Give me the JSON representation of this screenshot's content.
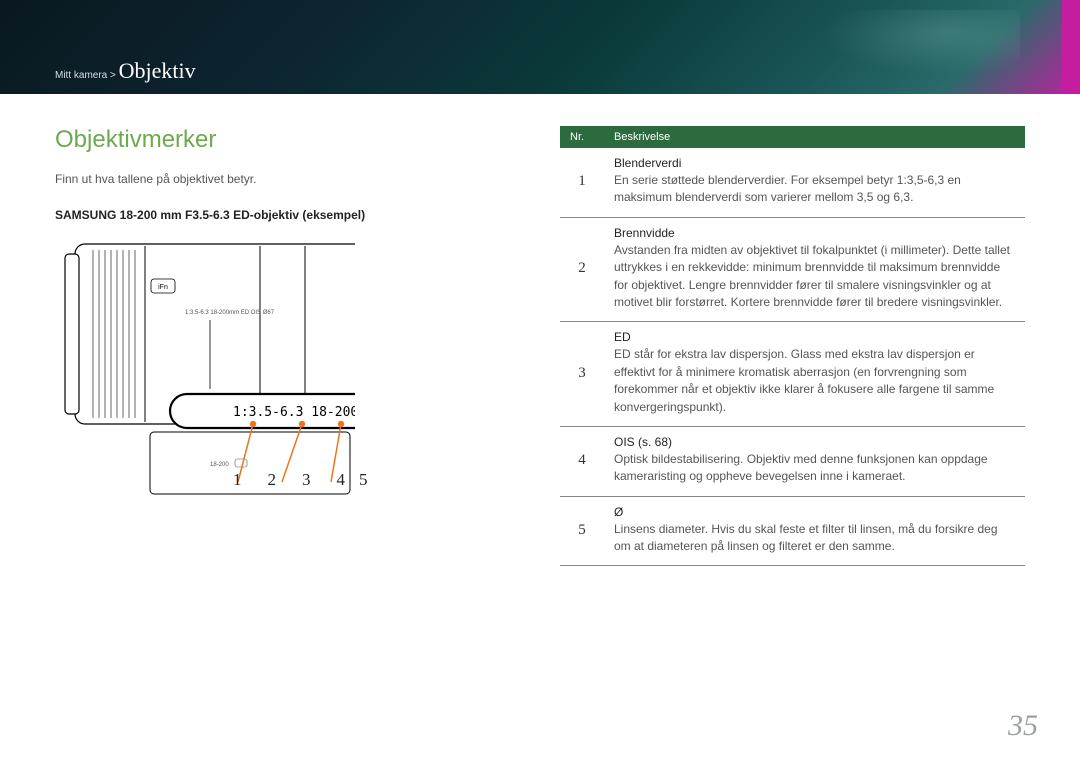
{
  "breadcrumb": {
    "parent": "Mitt kamera >",
    "current": "Objektiv"
  },
  "section_title": "Objektivmerker",
  "intro": "Finn ut hva tallene på objektivet betyr.",
  "example_label": "SAMSUNG 18-200 mm F3.5-6.3 ED-objektiv (eksempel)",
  "lens_marking": "1:3.5-6.3 18-200mm ED OIS Ø67",
  "callouts": [
    "1",
    "2",
    "3",
    "4",
    "5"
  ],
  "table": {
    "header_nr": "Nr.",
    "header_desc": "Beskrivelse",
    "rows": [
      {
        "nr": "1",
        "title": "Blenderverdi",
        "body": "En serie støttede blenderverdier. For eksempel betyr 1:3,5-6,3 en maksimum blenderverdi som varierer mellom 3,5 og 6,3."
      },
      {
        "nr": "2",
        "title": "Brennvidde",
        "body": "Avstanden fra midten av objektivet til fokalpunktet (i millimeter). Dette tallet uttrykkes i en rekkevidde: minimum brennvidde til maksimum brennvidde for objektivet. Lengre brennvidder fører til smalere visningsvinkler og at motivet blir forstørret. Kortere brennvidde fører til bredere visningsvinkler."
      },
      {
        "nr": "3",
        "title": "ED",
        "body": "ED står for ekstra lav dispersjon. Glass med ekstra lav dispersjon er effektivt for å minimere kromatisk aberrasjon (en forvrengning som forekommer når et objektiv ikke klarer å fokusere alle fargene til samme konvergeringspunkt)."
      },
      {
        "nr": "4",
        "title": "OIS (s. 68)",
        "body": "Optisk bildestabilisering. Objektiv med denne funksjonen kan oppdage kameraristing og oppheve bevegelsen inne i kameraet."
      },
      {
        "nr": "5",
        "title": "Ø",
        "body": "Linsens diameter. Hvis du skal feste et filter til linsen, må du forsikre deg om at diameteren på linsen og filteret er den samme."
      }
    ]
  },
  "page_number": "35",
  "colors": {
    "accent_green": "#6fa84f",
    "table_header": "#2b6b3e",
    "callout_orange": "#e87722"
  }
}
